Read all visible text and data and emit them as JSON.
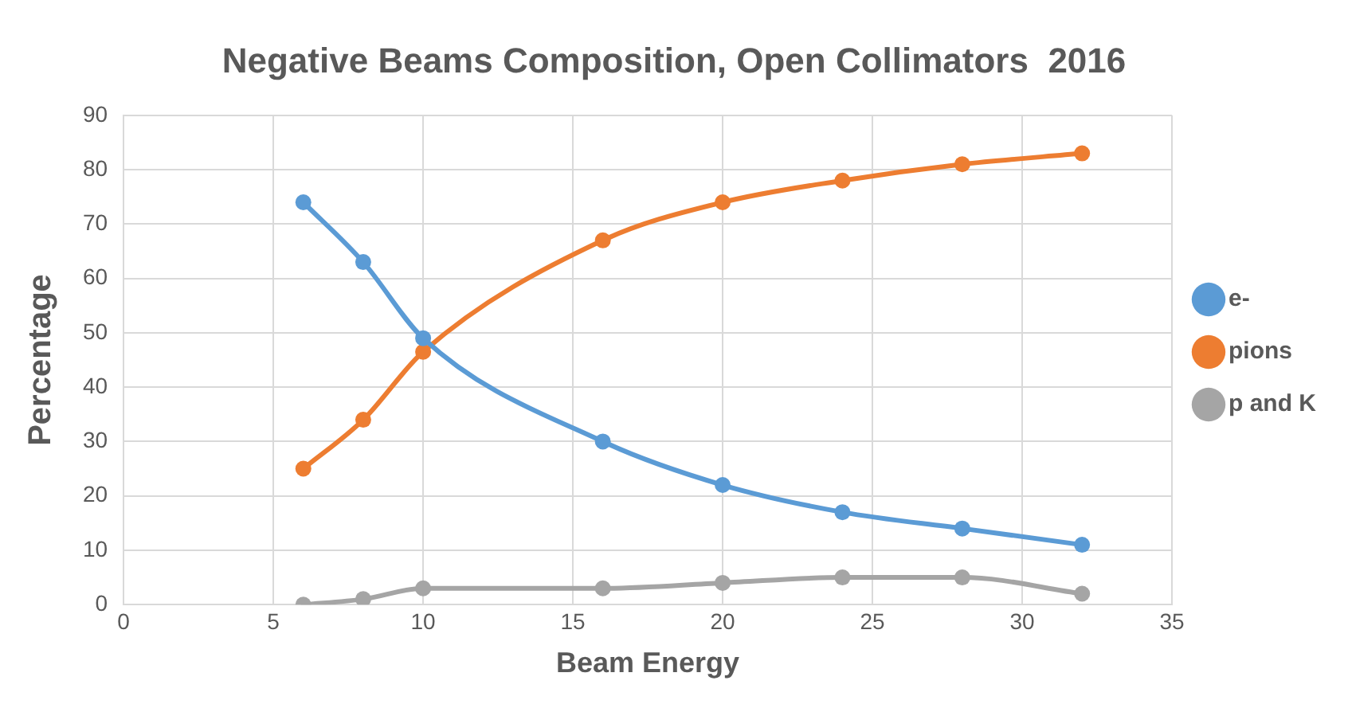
{
  "chart_data": {
    "type": "line",
    "title": "Negative Beams Composition, Open Collimators  2016",
    "xlabel": "Beam Energy",
    "ylabel": "Percentage",
    "x": [
      6,
      8,
      10,
      16,
      20,
      24,
      28,
      32
    ],
    "series": [
      {
        "name": "e-",
        "color": "#5b9bd5",
        "values": [
          74,
          63,
          49,
          30,
          22,
          17,
          14,
          11
        ]
      },
      {
        "name": "pions",
        "color": "#ed7d31",
        "values": [
          25,
          34,
          46.5,
          67,
          74,
          78,
          81,
          83
        ]
      },
      {
        "name": "p and K",
        "color": "#a5a5a5",
        "values": [
          0,
          1,
          3,
          3,
          4,
          5,
          5,
          2
        ]
      }
    ],
    "xlim": [
      0,
      35
    ],
    "xticks": [
      0,
      5,
      10,
      15,
      20,
      25,
      30,
      35
    ],
    "ylim": [
      0,
      90
    ],
    "yticks": [
      0,
      10,
      20,
      30,
      40,
      50,
      60,
      70,
      80,
      90
    ],
    "grid": true,
    "legend": "right",
    "marker": "circle",
    "line_style": "solid"
  }
}
